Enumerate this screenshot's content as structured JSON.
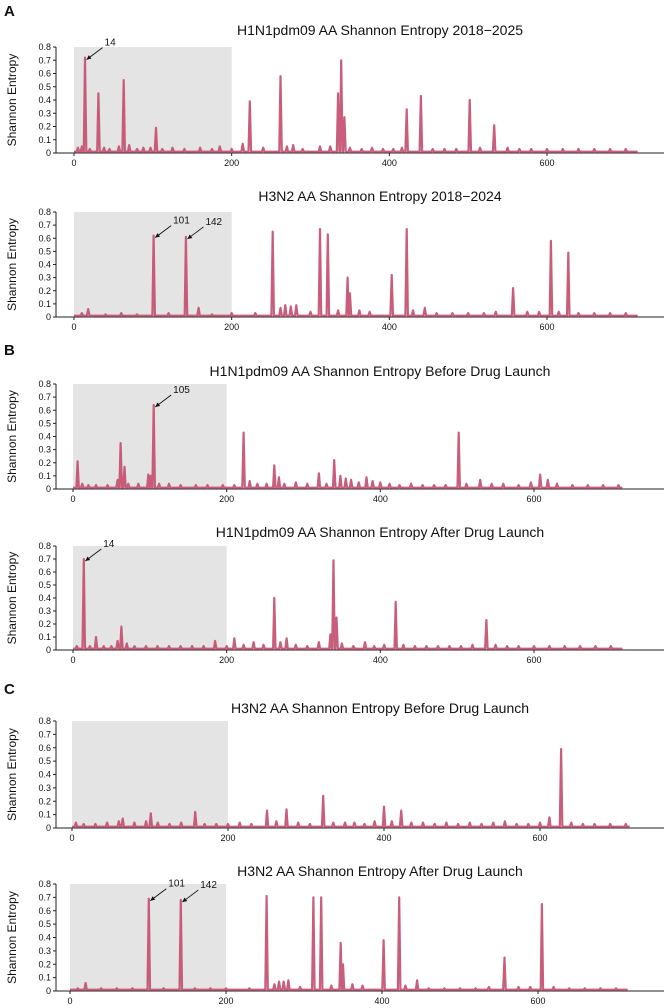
{
  "panels": [
    {
      "letter": "A"
    },
    {
      "letter": "B"
    },
    {
      "letter": "C"
    }
  ],
  "style": {
    "line_color": "#c24d6e",
    "region_color": "#e4e4e4",
    "axis_color": "#222222"
  },
  "chart_data": [
    {
      "type": "line",
      "title": "H1N1pdm09 AA Shannon Entropy 2018−2025",
      "ylabel": "Shannon Entropy",
      "xlabel": "",
      "xlim": [
        0,
        720
      ],
      "ylim": [
        0,
        0.8
      ],
      "xticks": [
        0,
        200,
        400,
        600
      ],
      "yticks": [
        0,
        0.1,
        0.2,
        0.3,
        0.4,
        0.5,
        0.6,
        0.7,
        0.8
      ],
      "shaded_region": [
        0,
        200
      ],
      "annotations": [
        {
          "label": "14",
          "x": 14,
          "y": 0.72
        }
      ],
      "peaks": [
        [
          5,
          0.04
        ],
        [
          10,
          0.05
        ],
        [
          14,
          0.72
        ],
        [
          20,
          0.03
        ],
        [
          31,
          0.45
        ],
        [
          38,
          0.04
        ],
        [
          45,
          0.03
        ],
        [
          57,
          0.05
        ],
        [
          63,
          0.55
        ],
        [
          70,
          0.06
        ],
        [
          80,
          0.03
        ],
        [
          88,
          0.04
        ],
        [
          97,
          0.04
        ],
        [
          104,
          0.19
        ],
        [
          112,
          0.03
        ],
        [
          125,
          0.04
        ],
        [
          140,
          0.03
        ],
        [
          160,
          0.04
        ],
        [
          175,
          0.03
        ],
        [
          185,
          0.05
        ],
        [
          200,
          0.03
        ],
        [
          214,
          0.07
        ],
        [
          223,
          0.39
        ],
        [
          240,
          0.04
        ],
        [
          262,
          0.58
        ],
        [
          270,
          0.05
        ],
        [
          278,
          0.06
        ],
        [
          290,
          0.03
        ],
        [
          312,
          0.05
        ],
        [
          325,
          0.05
        ],
        [
          335,
          0.45
        ],
        [
          339,
          0.7
        ],
        [
          343,
          0.27
        ],
        [
          350,
          0.04
        ],
        [
          365,
          0.03
        ],
        [
          378,
          0.04
        ],
        [
          392,
          0.03
        ],
        [
          405,
          0.03
        ],
        [
          416,
          0.04
        ],
        [
          422,
          0.33
        ],
        [
          440,
          0.43
        ],
        [
          455,
          0.03
        ],
        [
          470,
          0.03
        ],
        [
          485,
          0.03
        ],
        [
          502,
          0.4
        ],
        [
          515,
          0.04
        ],
        [
          533,
          0.21
        ],
        [
          550,
          0.04
        ],
        [
          565,
          0.03
        ],
        [
          580,
          0.03
        ],
        [
          600,
          0.03
        ],
        [
          620,
          0.03
        ],
        [
          640,
          0.03
        ],
        [
          660,
          0.03
        ],
        [
          680,
          0.03
        ],
        [
          700,
          0.03
        ]
      ]
    },
    {
      "type": "line",
      "title": "H3N2 AA Shannon Entropy 2018−2024",
      "ylabel": "Shannon Entropy",
      "xlabel": "",
      "xlim": [
        0,
        720
      ],
      "ylim": [
        0,
        0.8
      ],
      "xticks": [
        0,
        200,
        400,
        600
      ],
      "yticks": [
        0,
        0.1,
        0.2,
        0.3,
        0.4,
        0.5,
        0.6,
        0.7,
        0.8
      ],
      "shaded_region": [
        0,
        200
      ],
      "annotations": [
        {
          "label": "101",
          "x": 101,
          "y": 0.62
        },
        {
          "label": "142",
          "x": 142,
          "y": 0.61
        }
      ],
      "peaks": [
        [
          10,
          0.03
        ],
        [
          18,
          0.06
        ],
        [
          40,
          0.02
        ],
        [
          60,
          0.03
        ],
        [
          80,
          0.02
        ],
        [
          101,
          0.62
        ],
        [
          120,
          0.03
        ],
        [
          142,
          0.61
        ],
        [
          158,
          0.07
        ],
        [
          175,
          0.02
        ],
        [
          200,
          0.03
        ],
        [
          230,
          0.03
        ],
        [
          252,
          0.65
        ],
        [
          262,
          0.07
        ],
        [
          268,
          0.09
        ],
        [
          275,
          0.08
        ],
        [
          282,
          0.09
        ],
        [
          300,
          0.04
        ],
        [
          312,
          0.67
        ],
        [
          322,
          0.63
        ],
        [
          335,
          0.05
        ],
        [
          347,
          0.3
        ],
        [
          350,
          0.18
        ],
        [
          362,
          0.05
        ],
        [
          375,
          0.04
        ],
        [
          403,
          0.32
        ],
        [
          422,
          0.67
        ],
        [
          430,
          0.05
        ],
        [
          445,
          0.07
        ],
        [
          460,
          0.03
        ],
        [
          480,
          0.03
        ],
        [
          500,
          0.03
        ],
        [
          520,
          0.03
        ],
        [
          535,
          0.04
        ],
        [
          557,
          0.22
        ],
        [
          575,
          0.04
        ],
        [
          590,
          0.04
        ],
        [
          605,
          0.58
        ],
        [
          615,
          0.04
        ],
        [
          627,
          0.49
        ],
        [
          640,
          0.03
        ],
        [
          660,
          0.03
        ],
        [
          680,
          0.03
        ],
        [
          700,
          0.03
        ]
      ]
    },
    {
      "type": "line",
      "title": "H1N1pdm09 AA Shannon Entropy Before Drug Launch",
      "ylabel": "Shannon Entropy",
      "xlabel": "",
      "xlim": [
        0,
        720
      ],
      "ylim": [
        0,
        0.8
      ],
      "xticks": [
        0,
        200,
        400,
        600
      ],
      "yticks": [
        0,
        0.1,
        0.2,
        0.3,
        0.4,
        0.5,
        0.6,
        0.7,
        0.8
      ],
      "shaded_region": [
        0,
        200
      ],
      "annotations": [
        {
          "label": "105",
          "x": 105,
          "y": 0.64
        }
      ],
      "peaks": [
        [
          6,
          0.21
        ],
        [
          12,
          0.04
        ],
        [
          20,
          0.03
        ],
        [
          30,
          0.03
        ],
        [
          45,
          0.03
        ],
        [
          58,
          0.07
        ],
        [
          62,
          0.35
        ],
        [
          67,
          0.17
        ],
        [
          72,
          0.04
        ],
        [
          85,
          0.04
        ],
        [
          98,
          0.11
        ],
        [
          101,
          0.1
        ],
        [
          105,
          0.64
        ],
        [
          112,
          0.04
        ],
        [
          125,
          0.04
        ],
        [
          140,
          0.03
        ],
        [
          160,
          0.03
        ],
        [
          175,
          0.03
        ],
        [
          195,
          0.03
        ],
        [
          210,
          0.03
        ],
        [
          222,
          0.43
        ],
        [
          230,
          0.06
        ],
        [
          240,
          0.04
        ],
        [
          252,
          0.04
        ],
        [
          262,
          0.18
        ],
        [
          268,
          0.09
        ],
        [
          275,
          0.04
        ],
        [
          290,
          0.05
        ],
        [
          305,
          0.04
        ],
        [
          320,
          0.12
        ],
        [
          330,
          0.04
        ],
        [
          340,
          0.22
        ],
        [
          348,
          0.1
        ],
        [
          355,
          0.08
        ],
        [
          362,
          0.07
        ],
        [
          372,
          0.05
        ],
        [
          382,
          0.09
        ],
        [
          390,
          0.06
        ],
        [
          400,
          0.05
        ],
        [
          412,
          0.04
        ],
        [
          425,
          0.03
        ],
        [
          440,
          0.04
        ],
        [
          455,
          0.03
        ],
        [
          470,
          0.03
        ],
        [
          485,
          0.03
        ],
        [
          502,
          0.43
        ],
        [
          512,
          0.04
        ],
        [
          530,
          0.07
        ],
        [
          545,
          0.04
        ],
        [
          560,
          0.04
        ],
        [
          580,
          0.03
        ],
        [
          596,
          0.05
        ],
        [
          608,
          0.11
        ],
        [
          618,
          0.07
        ],
        [
          630,
          0.04
        ],
        [
          650,
          0.03
        ],
        [
          670,
          0.03
        ],
        [
          690,
          0.03
        ],
        [
          710,
          0.03
        ]
      ]
    },
    {
      "type": "line",
      "title": "H1N1pdm09 AA Shannon Entropy After Drug Launch",
      "ylabel": "Shannon Entropy",
      "xlabel": "",
      "xlim": [
        0,
        720
      ],
      "ylim": [
        0,
        0.8
      ],
      "xticks": [
        0,
        200,
        400,
        600
      ],
      "yticks": [
        0,
        0.1,
        0.2,
        0.3,
        0.4,
        0.5,
        0.6,
        0.7,
        0.8
      ],
      "shaded_region": [
        0,
        200
      ],
      "annotations": [
        {
          "label": "14",
          "x": 14,
          "y": 0.7
        }
      ],
      "peaks": [
        [
          5,
          0.03
        ],
        [
          14,
          0.7
        ],
        [
          22,
          0.03
        ],
        [
          30,
          0.1
        ],
        [
          40,
          0.03
        ],
        [
          50,
          0.03
        ],
        [
          58,
          0.07
        ],
        [
          63,
          0.18
        ],
        [
          70,
          0.05
        ],
        [
          80,
          0.03
        ],
        [
          95,
          0.03
        ],
        [
          110,
          0.03
        ],
        [
          125,
          0.03
        ],
        [
          140,
          0.03
        ],
        [
          155,
          0.03
        ],
        [
          170,
          0.03
        ],
        [
          185,
          0.07
        ],
        [
          200,
          0.03
        ],
        [
          210,
          0.09
        ],
        [
          222,
          0.04
        ],
        [
          235,
          0.06
        ],
        [
          248,
          0.04
        ],
        [
          262,
          0.4
        ],
        [
          270,
          0.06
        ],
        [
          278,
          0.09
        ],
        [
          290,
          0.04
        ],
        [
          305,
          0.03
        ],
        [
          320,
          0.06
        ],
        [
          335,
          0.12
        ],
        [
          339,
          0.69
        ],
        [
          343,
          0.25
        ],
        [
          350,
          0.05
        ],
        [
          365,
          0.03
        ],
        [
          380,
          0.06
        ],
        [
          392,
          0.03
        ],
        [
          405,
          0.04
        ],
        [
          420,
          0.37
        ],
        [
          430,
          0.04
        ],
        [
          445,
          0.03
        ],
        [
          460,
          0.03
        ],
        [
          475,
          0.03
        ],
        [
          490,
          0.03
        ],
        [
          505,
          0.03
        ],
        [
          520,
          0.04
        ],
        [
          538,
          0.23
        ],
        [
          550,
          0.04
        ],
        [
          565,
          0.03
        ],
        [
          580,
          0.03
        ],
        [
          600,
          0.03
        ],
        [
          620,
          0.03
        ],
        [
          640,
          0.03
        ],
        [
          660,
          0.03
        ],
        [
          680,
          0.03
        ],
        [
          700,
          0.03
        ]
      ]
    },
    {
      "type": "line",
      "title": "H3N2 AA Shannon Entropy Before Drug Launch",
      "ylabel": "Shannon Entropy",
      "xlabel": "",
      "xlim": [
        0,
        720
      ],
      "ylim": [
        0,
        0.8
      ],
      "xticks": [
        0,
        200,
        400,
        600
      ],
      "yticks": [
        0,
        0.1,
        0.2,
        0.3,
        0.4,
        0.5,
        0.6,
        0.7,
        0.8
      ],
      "shaded_region": [
        0,
        200
      ],
      "annotations": [],
      "peaks": [
        [
          5,
          0.04
        ],
        [
          15,
          0.03
        ],
        [
          30,
          0.03
        ],
        [
          45,
          0.04
        ],
        [
          60,
          0.05
        ],
        [
          65,
          0.07
        ],
        [
          80,
          0.04
        ],
        [
          95,
          0.05
        ],
        [
          101,
          0.11
        ],
        [
          110,
          0.04
        ],
        [
          125,
          0.03
        ],
        [
          140,
          0.04
        ],
        [
          158,
          0.12
        ],
        [
          170,
          0.03
        ],
        [
          185,
          0.03
        ],
        [
          200,
          0.03
        ],
        [
          215,
          0.04
        ],
        [
          230,
          0.03
        ],
        [
          250,
          0.13
        ],
        [
          262,
          0.05
        ],
        [
          275,
          0.14
        ],
        [
          290,
          0.04
        ],
        [
          305,
          0.03
        ],
        [
          322,
          0.24
        ],
        [
          335,
          0.04
        ],
        [
          350,
          0.04
        ],
        [
          362,
          0.04
        ],
        [
          375,
          0.03
        ],
        [
          388,
          0.05
        ],
        [
          400,
          0.16
        ],
        [
          410,
          0.05
        ],
        [
          422,
          0.13
        ],
        [
          435,
          0.04
        ],
        [
          450,
          0.04
        ],
        [
          465,
          0.03
        ],
        [
          480,
          0.04
        ],
        [
          495,
          0.03
        ],
        [
          510,
          0.04
        ],
        [
          525,
          0.03
        ],
        [
          540,
          0.04
        ],
        [
          555,
          0.05
        ],
        [
          570,
          0.03
        ],
        [
          585,
          0.03
        ],
        [
          600,
          0.04
        ],
        [
          612,
          0.08
        ],
        [
          627,
          0.59
        ],
        [
          640,
          0.04
        ],
        [
          655,
          0.03
        ],
        [
          670,
          0.03
        ],
        [
          690,
          0.03
        ],
        [
          710,
          0.03
        ]
      ]
    },
    {
      "type": "line",
      "title": "H3N2 AA Shannon Entropy After Drug Launch",
      "ylabel": "Shannon Entropy",
      "xlabel": "",
      "xlim": [
        0,
        720
      ],
      "ylim": [
        0,
        0.8
      ],
      "xticks": [
        0,
        200,
        400,
        600
      ],
      "yticks": [
        0,
        0.1,
        0.2,
        0.3,
        0.4,
        0.5,
        0.6,
        0.7,
        0.8
      ],
      "shaded_region": [
        0,
        200
      ],
      "annotations": [
        {
          "label": "101",
          "x": 101,
          "y": 0.69
        },
        {
          "label": "142",
          "x": 142,
          "y": 0.68
        }
      ],
      "peaks": [
        [
          10,
          0.02
        ],
        [
          20,
          0.06
        ],
        [
          40,
          0.02
        ],
        [
          60,
          0.02
        ],
        [
          80,
          0.02
        ],
        [
          101,
          0.69
        ],
        [
          120,
          0.02
        ],
        [
          142,
          0.68
        ],
        [
          160,
          0.02
        ],
        [
          180,
          0.02
        ],
        [
          200,
          0.02
        ],
        [
          230,
          0.02
        ],
        [
          252,
          0.71
        ],
        [
          262,
          0.05
        ],
        [
          268,
          0.07
        ],
        [
          274,
          0.07
        ],
        [
          280,
          0.08
        ],
        [
          295,
          0.03
        ],
        [
          312,
          0.7
        ],
        [
          322,
          0.7
        ],
        [
          335,
          0.04
        ],
        [
          347,
          0.36
        ],
        [
          350,
          0.2
        ],
        [
          362,
          0.05
        ],
        [
          375,
          0.04
        ],
        [
          402,
          0.38
        ],
        [
          422,
          0.7
        ],
        [
          430,
          0.04
        ],
        [
          445,
          0.08
        ],
        [
          460,
          0.02
        ],
        [
          480,
          0.02
        ],
        [
          500,
          0.02
        ],
        [
          520,
          0.02
        ],
        [
          537,
          0.03
        ],
        [
          557,
          0.25
        ],
        [
          575,
          0.03
        ],
        [
          590,
          0.03
        ],
        [
          605,
          0.65
        ],
        [
          620,
          0.03
        ],
        [
          640,
          0.02
        ],
        [
          660,
          0.02
        ],
        [
          680,
          0.02
        ],
        [
          700,
          0.02
        ]
      ]
    }
  ]
}
